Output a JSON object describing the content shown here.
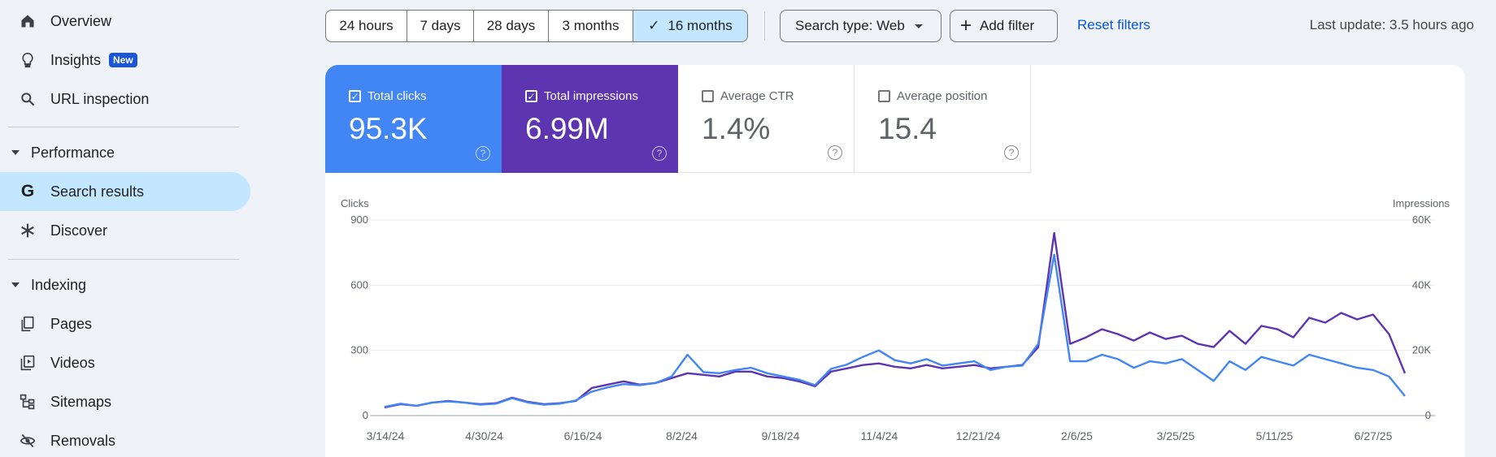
{
  "sidebar": {
    "items": [
      {
        "label": "Overview",
        "icon": "home-icon"
      },
      {
        "label": "Insights",
        "icon": "lightbulb-icon",
        "badge": "New"
      },
      {
        "label": "URL inspection",
        "icon": "search-icon"
      }
    ],
    "performance": {
      "heading": "Performance",
      "items": [
        {
          "label": "Search results",
          "icon": "google-g-icon",
          "active": true
        },
        {
          "label": "Discover",
          "icon": "asterisk-icon"
        }
      ]
    },
    "indexing": {
      "heading": "Indexing",
      "items": [
        {
          "label": "Pages",
          "icon": "pages-icon"
        },
        {
          "label": "Videos",
          "icon": "video-icon"
        },
        {
          "label": "Sitemaps",
          "icon": "sitemap-icon"
        },
        {
          "label": "Removals",
          "icon": "eye-off-icon"
        }
      ]
    }
  },
  "toolbar": {
    "ranges": [
      "24 hours",
      "7 days",
      "28 days",
      "3 months",
      "16 months"
    ],
    "selected_range": "16 months",
    "search_type": "Search type: Web",
    "add_filter": "Add filter",
    "reset": "Reset filters",
    "last_update": "Last update: 3.5 hours ago"
  },
  "metrics": [
    {
      "label": "Total clicks",
      "value": "95.3K",
      "checked": true,
      "color": "#4285f4"
    },
    {
      "label": "Total impressions",
      "value": "6.99M",
      "checked": true,
      "color": "#5e35b1"
    },
    {
      "label": "Average CTR",
      "value": "1.4%",
      "checked": false,
      "color": "#ffffff"
    },
    {
      "label": "Average position",
      "value": "15.4",
      "checked": false,
      "color": "#ffffff"
    }
  ],
  "chart_data": {
    "type": "line",
    "left_axis_title": "Clicks",
    "right_axis_title": "Impressions",
    "y_left": {
      "ticks": [
        "0",
        "300",
        "600",
        "900"
      ],
      "range": [
        0,
        900
      ]
    },
    "y_right": {
      "ticks": [
        "0",
        "20K",
        "40K",
        "60K"
      ],
      "range": [
        0,
        60000
      ]
    },
    "x_ticks": [
      "3/14/24",
      "4/30/24",
      "6/16/24",
      "8/2/24",
      "9/18/24",
      "11/4/24",
      "12/21/24",
      "2/6/25",
      "3/25/25",
      "5/11/25",
      "6/27/25"
    ],
    "grid": true,
    "series": [
      {
        "name": "Clicks",
        "color": "#4285f4",
        "axis": "left",
        "values": [
          40,
          55,
          45,
          60,
          65,
          60,
          50,
          55,
          80,
          60,
          50,
          55,
          70,
          110,
          130,
          145,
          140,
          150,
          180,
          280,
          200,
          195,
          210,
          220,
          195,
          180,
          165,
          140,
          215,
          235,
          270,
          300,
          255,
          240,
          260,
          230,
          240,
          250,
          210,
          225,
          230,
          330,
          740,
          250,
          250,
          280,
          260,
          220,
          250,
          240,
          260,
          210,
          160,
          250,
          210,
          270,
          250,
          230,
          280,
          260,
          240,
          220,
          210,
          180,
          90
        ]
      },
      {
        "name": "Impressions",
        "color": "#5e35b1",
        "axis": "right",
        "values": [
          2500,
          3500,
          3000,
          4000,
          4500,
          4000,
          3500,
          3800,
          5500,
          4200,
          3500,
          3800,
          4500,
          8500,
          9500,
          10500,
          9500,
          10000,
          11500,
          13000,
          12500,
          12000,
          13500,
          13500,
          12000,
          11500,
          10500,
          9000,
          13500,
          14500,
          15500,
          16000,
          15000,
          14500,
          15500,
          14500,
          15000,
          15500,
          14500,
          15000,
          15500,
          21000,
          56000,
          22000,
          24000,
          26500,
          25000,
          23000,
          25500,
          23500,
          24500,
          22000,
          21000,
          26000,
          22000,
          27500,
          26500,
          24000,
          30000,
          28500,
          31500,
          29500,
          31000,
          25000,
          13000
        ]
      }
    ]
  }
}
